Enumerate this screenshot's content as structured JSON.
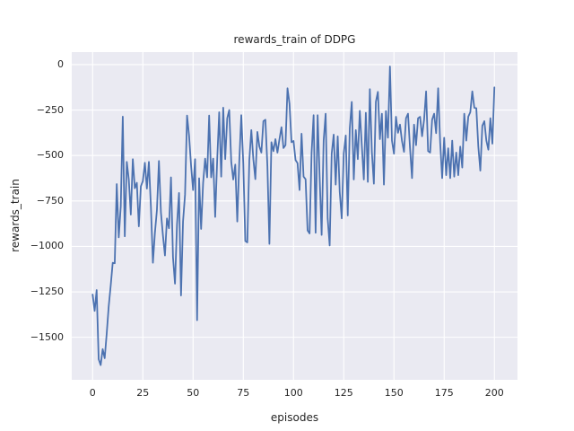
{
  "figure": {
    "title": "rewards_train of DDPG",
    "xlabel": "episodes",
    "ylabel": "rewards_train"
  },
  "chart_data": {
    "type": "line",
    "title": "rewards_train of DDPG",
    "xlabel": "episodes",
    "ylabel": "rewards_train",
    "grid": true,
    "legend": "none",
    "background_color": "#EAEAF2",
    "grid_color": "#FFFFFF",
    "text_color": "#262626",
    "xlim": [
      -10.4,
      211.5
    ],
    "ylim": [
      -1734,
      69
    ],
    "xticks": [
      0,
      25,
      50,
      75,
      100,
      125,
      150,
      175,
      200
    ],
    "yticks": [
      0,
      -250,
      -500,
      -750,
      -1000,
      -1250,
      -1500
    ],
    "xtick_labels": [
      "0",
      "25",
      "50",
      "75",
      "100",
      "125",
      "150",
      "175",
      "200"
    ],
    "ytick_labels": [
      "0",
      "−250",
      "−500",
      "−750",
      "−1000",
      "−1250",
      "−1500"
    ],
    "x_start": 0,
    "x_step": 1,
    "series": [
      {
        "name": "rewards_train",
        "color": "#4C72B0",
        "values": [
          -1265,
          -1355,
          -1240,
          -1620,
          -1653,
          -1565,
          -1615,
          -1480,
          -1330,
          -1215,
          -1090,
          -1093,
          -657,
          -950,
          -780,
          -286,
          -945,
          -535,
          -632,
          -825,
          -520,
          -680,
          -650,
          -890,
          -670,
          -640,
          -540,
          -682,
          -535,
          -781,
          -1090,
          -925,
          -800,
          -530,
          -813,
          -940,
          -1050,
          -846,
          -900,
          -620,
          -1060,
          -1205,
          -879,
          -706,
          -1270,
          -863,
          -715,
          -280,
          -390,
          -555,
          -690,
          -520,
          -1406,
          -625,
          -904,
          -650,
          -517,
          -620,
          -280,
          -620,
          -517,
          -838,
          -525,
          -262,
          -616,
          -237,
          -520,
          -295,
          -250,
          -535,
          -632,
          -550,
          -863,
          -533,
          -278,
          -545,
          -970,
          -978,
          -525,
          -360,
          -520,
          -630,
          -370,
          -450,
          -484,
          -311,
          -303,
          -558,
          -986,
          -427,
          -476,
          -410,
          -484,
          -410,
          -344,
          -459,
          -443,
          -130,
          -215,
          -427,
          -420,
          -525,
          -542,
          -690,
          -380,
          -616,
          -630,
          -912,
          -929,
          -484,
          -278,
          -925,
          -278,
          -616,
          -937,
          -418,
          -270,
          -846,
          -995,
          -490,
          -385,
          -660,
          -395,
          -700,
          -846,
          -490,
          -390,
          -830,
          -352,
          -205,
          -632,
          -360,
          -520,
          -254,
          -445,
          -632,
          -265,
          -645,
          -135,
          -480,
          -655,
          -204,
          -150,
          -410,
          -270,
          -660,
          -255,
          -402,
          -10,
          -418,
          -490,
          -287,
          -375,
          -330,
          -420,
          -480,
          -295,
          -270,
          -460,
          -624,
          -330,
          -443,
          -295,
          -287,
          -394,
          -303,
          -147,
          -476,
          -484,
          -303,
          -270,
          -377,
          -130,
          -427,
          -624,
          -402,
          -608,
          -460,
          -624,
          -418,
          -616,
          -484,
          -608,
          -451,
          -566,
          -270,
          -418,
          -286,
          -262,
          -147,
          -237,
          -240,
          -451,
          -583,
          -336,
          -311,
          -418,
          -468,
          -295,
          -435,
          -125
        ]
      }
    ]
  }
}
